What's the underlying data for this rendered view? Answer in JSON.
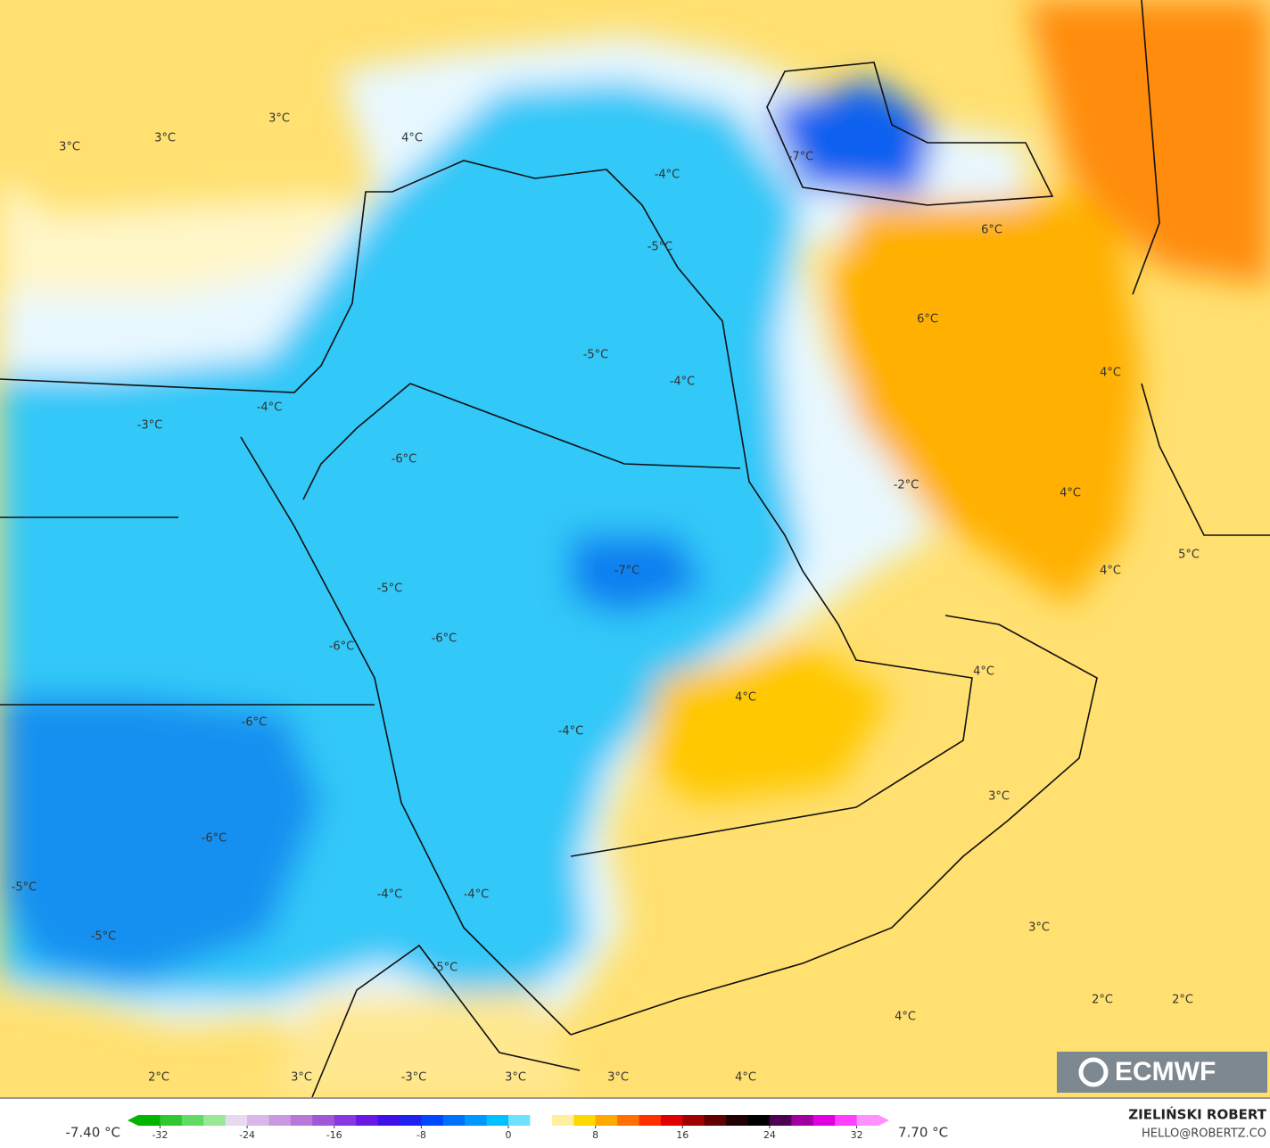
{
  "map_labels": [
    "3°C",
    "3°C",
    "3°C",
    "4°C",
    "-7°C",
    "-4°C",
    "-5°C",
    "6°C",
    "6°C",
    "-5°C",
    "-4°C",
    "4°C",
    "-4°C",
    "-3°C",
    "-6°C",
    "-2°C",
    "4°C",
    "-7°C",
    "4°C",
    "5°C",
    "-5°C",
    "-6°C",
    "-6°C",
    "4°C",
    "4°C",
    "-6°C",
    "-4°C",
    "3°C",
    "-6°C",
    "-5°C",
    "-4°C",
    "-4°C",
    "3°C",
    "-5°C",
    "-5°C",
    "4°C",
    "2°C",
    "2°C",
    "2°C",
    "3°C",
    "-3°C",
    "3°C",
    "3°C",
    "4°C"
  ],
  "logo": "ECMWF",
  "author": "ZIELIŃSKI ROBERT",
  "email": "HELLO@ROBERTZ.CO",
  "colorbar": {
    "min_label": "-7.40 °C",
    "max_label": "7.70 °C",
    "lim": [
      -34,
      34
    ],
    "ticks": [
      -32,
      -24,
      -16,
      -8,
      0,
      8,
      16,
      24,
      32
    ],
    "colors": [
      "#00b400",
      "#30c830",
      "#60dc60",
      "#98e898",
      "#e8d8f0",
      "#d8b8e8",
      "#c898e0",
      "#b878d8",
      "#a058d8",
      "#8838e0",
      "#6818e0",
      "#4010e8",
      "#2020f0",
      "#0048ff",
      "#0070ff",
      "#0098ff",
      "#00c0ff",
      "#70e0ff",
      "#ffffff",
      "#fff0a0",
      "#ffd800",
      "#ffa800",
      "#ff7000",
      "#ff3000",
      "#e00000",
      "#a00000",
      "#600000",
      "#200000",
      "#000000",
      "#500050",
      "#a000a0",
      "#e000e0",
      "#ff40ff",
      "#ff90ff"
    ]
  }
}
